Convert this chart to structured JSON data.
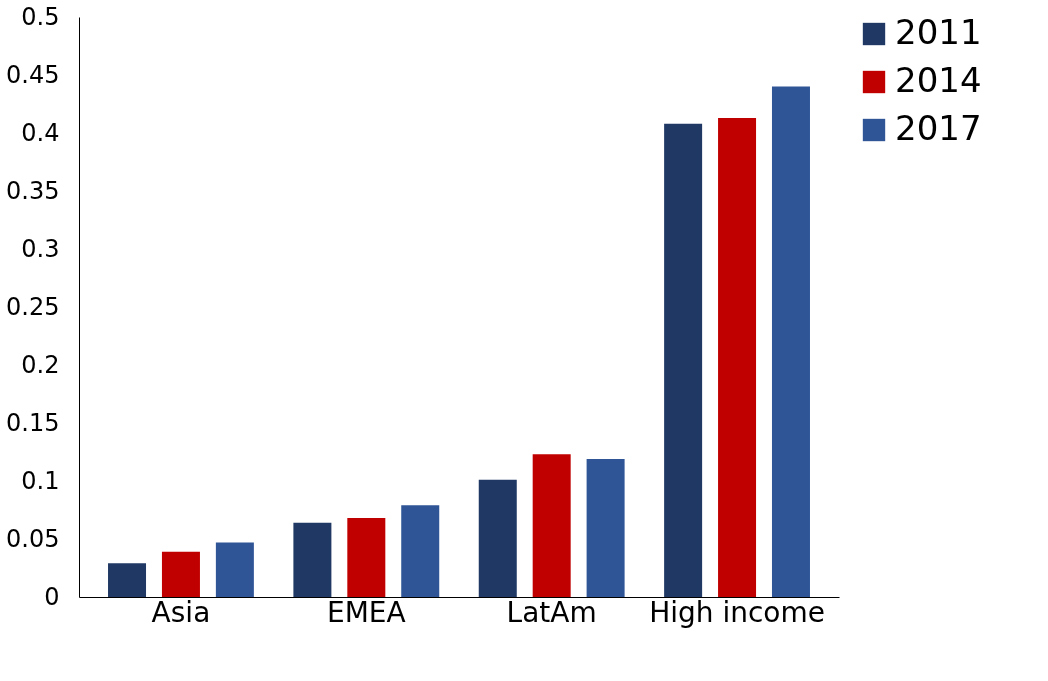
{
  "chart_data": {
    "type": "bar",
    "categories": [
      "Asia",
      "EMEA",
      "LatAm",
      "High income"
    ],
    "series": [
      {
        "name": "2011",
        "color": "#203864",
        "values": [
          0.029,
          0.064,
          0.101,
          0.408
        ]
      },
      {
        "name": "2014",
        "color": "#c00000",
        "values": [
          0.039,
          0.068,
          0.123,
          0.413
        ]
      },
      {
        "name": "2017",
        "color": "#2f5597",
        "values": [
          0.047,
          0.079,
          0.119,
          0.44
        ]
      }
    ],
    "ylim": [
      0,
      0.5
    ],
    "yticks": [
      0,
      0.05,
      0.1,
      0.15,
      0.2,
      0.25,
      0.3,
      0.35,
      0.4,
      0.45,
      0.5
    ],
    "grid": false,
    "legend": "right"
  }
}
